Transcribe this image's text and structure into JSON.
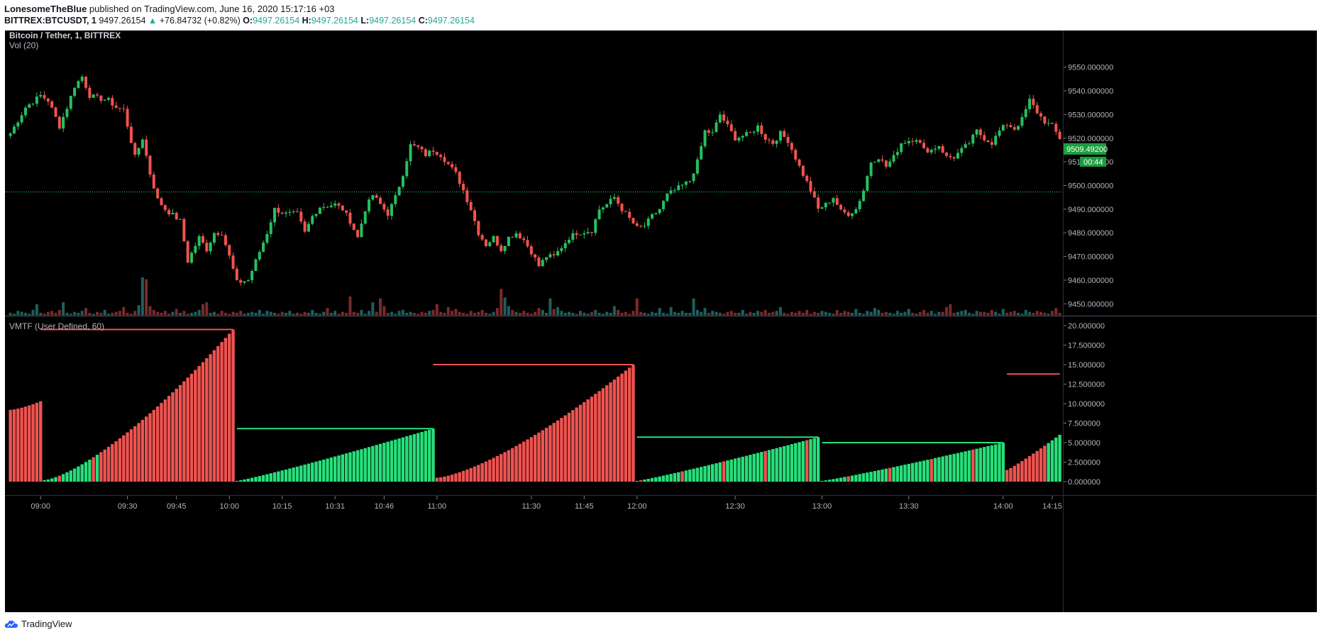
{
  "publish_header": {
    "author": "LonesomeTheBlue",
    "text": "published on TradingView.com, June 16, 2020 15:17:16 +03"
  },
  "symbol_line": {
    "symbol": "BITTREX:BTCUSDT, 1",
    "last": "9497.26154",
    "arrow": "▲",
    "change": "+76.84732 (+0.82%)",
    "o_label": "O:",
    "o": "9497.26154",
    "h_label": "H:",
    "h": "9497.26154",
    "l_label": "L:",
    "l": "9497.26154",
    "c_label": "C:",
    "c": "9497.26154"
  },
  "price_pane": {
    "title": "Bitcoin / Tether, 1, BITTREX",
    "volume_label": "Vol (20)",
    "last_price_label": "9509.49200",
    "countdown": "00:44"
  },
  "indicator_pane": {
    "title": "VMTF (User Defined, 60)"
  },
  "footer": {
    "brand": "TradingView"
  },
  "colors": {
    "up": "#26a69a",
    "up_bright": "#26e07a",
    "down": "#ef5350",
    "background": "#000000",
    "text": "#b2b5be",
    "price_tag": "#1b9e3e"
  },
  "chart_data": [
    {
      "type": "candlestick",
      "title": "Bitcoin / Tether, 1, BITTREX",
      "ylim": [
        9445,
        9558
      ],
      "yticks": [
        "9550.000000",
        "9540.000000",
        "9530.000000",
        "9520.000000",
        "9510.000000",
        "9500.000000",
        "9490.000000",
        "9480.000000",
        "9470.000000",
        "9460.000000",
        "9450.000000"
      ],
      "ytick_values": [
        9550,
        9540,
        9530,
        9520,
        9510,
        9500,
        9490,
        9480,
        9470,
        9460,
        9450
      ],
      "reference_line": 9497.26,
      "close_path": [
        [
          0,
          9522
        ],
        [
          4,
          9533
        ],
        [
          8,
          9538
        ],
        [
          10,
          9536
        ],
        [
          13,
          9525
        ],
        [
          15,
          9533
        ],
        [
          17,
          9542
        ],
        [
          19,
          9546
        ],
        [
          21,
          9538
        ],
        [
          23,
          9537
        ],
        [
          26,
          9536
        ],
        [
          28,
          9533
        ],
        [
          30,
          9532
        ],
        [
          33,
          9512
        ],
        [
          35,
          9520
        ],
        [
          37,
          9505
        ],
        [
          39,
          9494
        ],
        [
          41,
          9490
        ],
        [
          45,
          9485
        ],
        [
          47,
          9468
        ],
        [
          50,
          9478
        ],
        [
          52,
          9473
        ],
        [
          54,
          9480
        ],
        [
          56,
          9480
        ],
        [
          58,
          9470
        ],
        [
          60,
          9459
        ],
        [
          63,
          9460
        ],
        [
          66,
          9472
        ],
        [
          68,
          9480
        ],
        [
          70,
          9490
        ],
        [
          73,
          9488
        ],
        [
          76,
          9488
        ],
        [
          78,
          9480
        ],
        [
          80,
          9487
        ],
        [
          82,
          9491
        ],
        [
          86,
          9492
        ],
        [
          88,
          9490
        ],
        [
          90,
          9485
        ],
        [
          92,
          9478
        ],
        [
          94,
          9490
        ],
        [
          96,
          9496
        ],
        [
          98,
          9492
        ],
        [
          100,
          9488
        ],
        [
          102,
          9495
        ],
        [
          104,
          9505
        ],
        [
          106,
          9517
        ],
        [
          108,
          9516
        ],
        [
          110,
          9513
        ],
        [
          112,
          9515
        ],
        [
          114,
          9513
        ],
        [
          116,
          9509
        ],
        [
          118,
          9505
        ],
        [
          120,
          9498
        ],
        [
          122,
          9490
        ],
        [
          124,
          9480
        ],
        [
          126,
          9475
        ],
        [
          128,
          9478
        ],
        [
          130,
          9473
        ],
        [
          132,
          9478
        ],
        [
          134,
          9480
        ],
        [
          136,
          9477
        ],
        [
          138,
          9472
        ],
        [
          140,
          9466
        ],
        [
          142,
          9470
        ],
        [
          144,
          9470
        ],
        [
          146,
          9474
        ],
        [
          148,
          9478
        ],
        [
          150,
          9480
        ],
        [
          154,
          9481
        ],
        [
          156,
          9490
        ],
        [
          158,
          9492
        ],
        [
          160,
          9495
        ],
        [
          162,
          9490
        ],
        [
          164,
          9486
        ],
        [
          166,
          9482
        ],
        [
          168,
          9483
        ],
        [
          170,
          9487
        ],
        [
          172,
          9490
        ],
        [
          174,
          9496
        ],
        [
          176,
          9498
        ],
        [
          178,
          9500
        ],
        [
          180,
          9502
        ],
        [
          182,
          9510
        ],
        [
          184,
          9523
        ],
        [
          186,
          9522
        ],
        [
          188,
          9530
        ],
        [
          190,
          9525
        ],
        [
          192,
          9520
        ],
        [
          196,
          9522
        ],
        [
          198,
          9525
        ],
        [
          200,
          9520
        ],
        [
          202,
          9518
        ],
        [
          204,
          9522
        ],
        [
          206,
          9519
        ],
        [
          209,
          9508
        ],
        [
          212,
          9498
        ],
        [
          214,
          9490
        ],
        [
          216,
          9492
        ],
        [
          218,
          9495
        ],
        [
          220,
          9489
        ],
        [
          222,
          9488
        ],
        [
          224,
          9490
        ],
        [
          226,
          9498
        ],
        [
          228,
          9510
        ],
        [
          230,
          9512
        ],
        [
          232,
          9508
        ],
        [
          234,
          9512
        ],
        [
          236,
          9518
        ],
        [
          238,
          9519
        ],
        [
          240,
          9520
        ],
        [
          242,
          9515
        ],
        [
          244,
          9515
        ],
        [
          246,
          9517
        ],
        [
          248,
          9512
        ],
        [
          250,
          9512
        ],
        [
          254,
          9518
        ],
        [
          256,
          9523
        ],
        [
          258,
          9520
        ],
        [
          260,
          9518
        ],
        [
          262,
          9523
        ],
        [
          264,
          9526
        ],
        [
          266,
          9524
        ],
        [
          268,
          9528
        ],
        [
          270,
          9536
        ],
        [
          272,
          9531
        ],
        [
          274,
          9527
        ],
        [
          276,
          9525
        ],
        [
          278,
          9520
        ],
        [
          280,
          9515
        ],
        [
          282,
          9520
        ],
        [
          284,
          9523
        ],
        [
          286,
          9525
        ],
        [
          288,
          9530
        ],
        [
          290,
          9515
        ],
        [
          292,
          9510
        ]
      ]
    },
    {
      "type": "bar",
      "title": "Vol (20)",
      "series": [
        {
          "values": [
            3,
            2,
            5,
            4,
            3,
            2,
            6,
            12,
            3,
            2,
            4,
            5,
            3,
            6,
            14,
            3,
            2,
            4,
            3,
            5,
            8,
            3,
            2,
            4,
            3,
            6,
            2,
            3,
            4,
            5,
            9,
            3,
            2,
            5,
            11,
            40,
            38,
            10,
            6,
            4,
            3,
            5,
            2,
            4,
            7,
            3,
            5,
            2,
            3,
            4,
            6,
            12,
            14,
            3,
            4,
            2,
            5,
            3,
            2,
            4,
            3,
            5,
            2,
            3,
            4,
            3,
            6,
            2,
            5,
            4,
            3,
            2,
            4,
            3,
            5,
            2,
            3,
            2,
            4,
            3,
            6,
            3,
            2,
            4,
            8,
            3,
            5,
            2,
            4,
            3,
            20,
            4,
            3,
            6,
            2,
            5,
            14,
            4,
            18,
            10,
            3,
            4,
            2,
            5,
            6,
            3,
            4,
            3,
            2,
            4,
            3,
            5,
            6,
            12,
            4,
            3,
            9,
            5,
            7,
            4,
            3,
            2,
            5,
            3,
            4,
            6,
            3,
            2,
            4,
            8,
            28,
            19,
            10,
            6,
            4,
            3,
            5,
            3,
            2,
            4,
            8,
            6,
            3,
            18,
            7,
            9,
            5,
            3,
            4,
            3,
            2,
            5,
            3,
            2,
            4,
            6,
            3,
            2,
            4,
            3,
            10,
            6,
            3,
            4,
            2,
            5,
            18,
            4,
            3,
            2,
            4,
            3,
            8,
            3,
            2,
            9,
            4,
            3,
            5,
            3,
            3,
            18,
            6,
            4,
            8,
            3,
            5,
            4,
            3,
            2,
            4,
            5,
            3,
            3,
            6,
            2,
            4,
            3,
            5,
            4,
            6,
            3,
            4,
            5,
            9,
            3,
            2,
            4,
            3,
            5,
            3,
            6,
            2,
            4,
            3,
            5,
            4,
            3,
            2,
            6,
            3,
            5,
            4,
            3,
            7,
            3,
            2,
            5,
            4,
            8,
            6,
            3,
            4,
            3,
            2,
            5,
            3,
            4,
            7,
            3,
            2,
            4,
            6,
            3,
            5,
            2,
            4,
            4,
            9,
            12,
            3,
            4,
            5,
            6,
            3,
            2,
            5,
            4,
            4,
            3,
            6,
            4,
            2,
            7,
            3,
            4,
            5,
            3,
            2,
            6,
            4,
            3,
            5,
            4,
            3,
            2,
            5,
            8,
            3,
            4,
            6,
            5,
            3,
            4,
            5,
            9,
            3,
            2,
            5,
            4,
            6,
            3,
            10,
            3,
            2,
            5,
            8,
            4,
            6,
            10,
            12,
            16,
            4,
            3
          ]
        }
      ]
    },
    {
      "type": "bar",
      "title": "VMTF (User Defined, 60)",
      "ylim": [
        0,
        21
      ],
      "yticks": [
        "20.000000",
        "17.500000",
        "15.000000",
        "12.500000",
        "10.000000",
        "7.500000",
        "5.000000",
        "2.500000",
        "0.000000"
      ],
      "ytick_values": [
        20,
        17.5,
        15,
        12.5,
        10,
        7.5,
        5,
        2.5,
        0
      ],
      "segments": [
        {
          "start": 0,
          "end": 8,
          "from": 9.2,
          "to": 10.3,
          "color": "down"
        },
        {
          "start": 9,
          "end": 59,
          "from": 0.2,
          "to": 19.5,
          "color": "mixed_then_down"
        },
        {
          "start": 60,
          "end": 112,
          "from": 0.1,
          "to": 6.8,
          "color": "up"
        },
        {
          "start": 113,
          "end": 165,
          "from": 0.5,
          "to": 15.0,
          "color": "down"
        },
        {
          "start": 166,
          "end": 214,
          "from": 0.1,
          "to": 5.7,
          "color": "mixed_up"
        },
        {
          "start": 215,
          "end": 263,
          "from": 0.1,
          "to": 5.0,
          "color": "mixed_up"
        },
        {
          "start": 264,
          "end": 278,
          "from": 1.5,
          "to": 6.0,
          "color": "down_then_up"
        }
      ],
      "max_lines": [
        {
          "start": 8,
          "end": 59,
          "value": 19.5,
          "color": "down"
        },
        {
          "start": 60,
          "end": 112,
          "value": 6.8,
          "color": "up"
        },
        {
          "start": 112,
          "end": 165,
          "value": 15.0,
          "color": "down"
        },
        {
          "start": 166,
          "end": 214,
          "value": 5.7,
          "color": "up"
        },
        {
          "start": 215,
          "end": 263,
          "value": 5.0,
          "color": "up"
        },
        {
          "start": 264,
          "end": 278,
          "value": 13.8,
          "color": "down"
        }
      ]
    }
  ],
  "time_axis": [
    {
      "label": "09:00",
      "bar": 8
    },
    {
      "label": "09:30",
      "bar": 31
    },
    {
      "label": "09:45",
      "bar": 44
    },
    {
      "label": "10:00",
      "bar": 58
    },
    {
      "label": "10:15",
      "bar": 72
    },
    {
      "label": "10:31",
      "bar": 86
    },
    {
      "label": "10:46",
      "bar": 99
    },
    {
      "label": "11:00",
      "bar": 113
    },
    {
      "label": "11:30",
      "bar": 138
    },
    {
      "label": "11:45",
      "bar": 152
    },
    {
      "label": "12:00",
      "bar": 166
    },
    {
      "label": "12:30",
      "bar": 192
    },
    {
      "label": "13:00",
      "bar": 215
    },
    {
      "label": "13:30",
      "bar": 238
    },
    {
      "label": "14:00",
      "bar": 263
    },
    {
      "label": "14:15",
      "bar": 276
    }
  ]
}
